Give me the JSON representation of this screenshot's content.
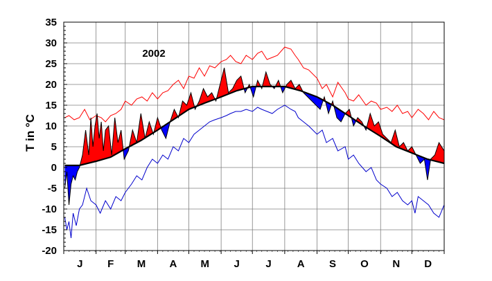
{
  "chart_data": {
    "type": "line",
    "title": "",
    "annotation": "2002",
    "ylabel": "T in °C",
    "xlabel": "",
    "ylim": [
      -20,
      35
    ],
    "xlim": [
      0,
      365
    ],
    "yticks": [
      35,
      30,
      25,
      20,
      15,
      10,
      5,
      0,
      -5,
      -10,
      -15,
      -20
    ],
    "month_labels": [
      "J",
      "F",
      "M",
      "A",
      "M",
      "J",
      "J",
      "A",
      "S",
      "O",
      "N",
      "D"
    ],
    "grid": true,
    "colors": {
      "above_normal_fill": "#ff0000",
      "below_normal_fill": "#0000ff",
      "max_line": "#ff0000",
      "min_line": "#0000cc",
      "normal_line": "#000000",
      "grid": "#7f7f7f"
    },
    "series": [
      {
        "key": "max",
        "x": [
          1,
          5,
          10,
          15,
          20,
          25,
          31,
          36,
          40,
          45,
          50,
          55,
          59,
          65,
          70,
          75,
          80,
          85,
          90,
          95,
          100,
          105,
          110,
          115,
          120,
          125,
          130,
          135,
          140,
          145,
          151,
          156,
          160,
          165,
          170,
          175,
          181,
          186,
          190,
          195,
          200,
          205,
          212,
          218,
          222,
          225,
          230,
          235,
          243,
          248,
          252,
          258,
          263,
          270,
          273,
          278,
          283,
          290,
          295,
          300,
          304,
          310,
          315,
          320,
          325,
          330,
          334,
          340,
          345,
          350,
          355,
          360,
          365
        ],
        "values": [
          12,
          12.5,
          11.5,
          12,
          14,
          11.5,
          12.5,
          12,
          11,
          12.5,
          13,
          14,
          16,
          15,
          16.5,
          17,
          16,
          18,
          16.5,
          18,
          18.5,
          20,
          21,
          19,
          22,
          21.5,
          24,
          22,
          24.5,
          24,
          25.5,
          26,
          27,
          25.5,
          25,
          27,
          26,
          27.5,
          28,
          26,
          26.5,
          27,
          29,
          28.5,
          27,
          26,
          24,
          23.5,
          21.5,
          19,
          20,
          17,
          20.5,
          18,
          16.5,
          16,
          17.5,
          15,
          16,
          15.5,
          14,
          14.5,
          13.5,
          15,
          13,
          13.5,
          12,
          14,
          13,
          11.5,
          13.5,
          12,
          11.5
        ]
      },
      {
        "key": "min",
        "x": [
          1,
          3,
          5,
          7,
          9,
          12,
          15,
          18,
          22,
          26,
          31,
          35,
          40,
          45,
          50,
          55,
          59,
          65,
          70,
          75,
          80,
          85,
          90,
          95,
          100,
          105,
          110,
          115,
          120,
          125,
          130,
          135,
          140,
          145,
          151,
          156,
          160,
          165,
          170,
          175,
          181,
          186,
          190,
          195,
          200,
          205,
          212,
          218,
          222,
          225,
          230,
          235,
          243,
          248,
          252,
          258,
          263,
          270,
          273,
          278,
          283,
          290,
          295,
          300,
          304,
          310,
          315,
          320,
          325,
          330,
          334,
          337,
          340,
          345,
          350,
          355,
          360,
          365
        ],
        "values": [
          -12,
          -15,
          -13,
          -17,
          -11,
          -14,
          -10,
          -9,
          -5,
          -8,
          -9,
          -11,
          -8,
          -10,
          -7,
          -8,
          -6,
          -4,
          -2,
          -3,
          0,
          2,
          1,
          3,
          2,
          5,
          4,
          7,
          6,
          8,
          9,
          10,
          11,
          11.5,
          12,
          12.5,
          13,
          13.5,
          13.5,
          14,
          13.5,
          14.5,
          14,
          13.5,
          13,
          14,
          15,
          14,
          13.5,
          12,
          11,
          10,
          8,
          9,
          6,
          7,
          4,
          5,
          2,
          3,
          1,
          -1,
          0,
          -3,
          -4,
          -5,
          -7,
          -6,
          -8,
          -9,
          -8,
          -11,
          -7,
          -8,
          -9,
          -11,
          -12,
          -9
        ]
      },
      {
        "key": "normal",
        "x": [
          1,
          15,
          31,
          45,
          59,
          74,
          90,
          105,
          120,
          135,
          151,
          166,
          181,
          196,
          212,
          227,
          243,
          258,
          273,
          288,
          304,
          319,
          334,
          349,
          365
        ],
        "values": [
          0.5,
          0.5,
          1.5,
          2.5,
          4.5,
          6.5,
          9,
          11.5,
          14,
          15.5,
          17,
          18.5,
          19.5,
          19.5,
          19.5,
          18.5,
          17,
          15,
          12.5,
          10,
          7.5,
          5,
          3.5,
          2,
          1
        ]
      },
      {
        "key": "mean",
        "x": [
          1,
          3,
          5,
          7,
          9,
          11,
          13,
          15,
          18,
          21,
          24,
          26,
          28,
          30,
          32,
          34,
          36,
          38,
          40,
          43,
          46,
          49,
          52,
          55,
          58,
          62,
          66,
          70,
          74,
          78,
          82,
          86,
          90,
          94,
          98,
          102,
          106,
          110,
          114,
          118,
          122,
          126,
          130,
          134,
          138,
          142,
          146,
          150,
          154,
          158,
          162,
          166,
          170,
          174,
          178,
          182,
          186,
          190,
          194,
          198,
          202,
          206,
          210,
          214,
          218,
          222,
          226,
          230,
          234,
          238,
          242,
          246,
          250,
          254,
          258,
          262,
          266,
          270,
          274,
          278,
          282,
          286,
          290,
          294,
          298,
          302,
          306,
          310,
          314,
          318,
          322,
          326,
          330,
          334,
          338,
          342,
          346,
          349,
          352,
          356,
          360,
          365
        ],
        "values": [
          -5,
          -1,
          -9,
          -4,
          -2,
          -3,
          -1,
          0,
          3,
          9,
          3,
          12,
          5,
          10,
          13,
          7,
          11,
          4,
          9,
          10,
          3,
          12,
          6,
          9,
          2,
          4,
          9,
          6,
          13,
          7,
          11,
          8,
          12,
          9,
          7,
          11,
          14,
          12,
          16,
          15,
          18,
          14,
          16,
          19,
          17,
          18,
          16,
          20,
          24,
          18,
          19,
          21,
          22,
          18,
          20,
          17,
          21,
          19,
          23,
          20,
          19,
          21,
          18,
          20,
          21,
          19,
          20,
          18,
          17,
          16,
          15,
          14,
          17,
          13,
          16,
          12,
          11,
          13,
          14,
          10,
          12,
          11,
          9,
          13,
          10,
          11,
          8,
          7,
          6,
          9,
          5,
          6,
          4,
          5,
          3,
          1,
          2,
          -3,
          2,
          3,
          6,
          4
        ]
      }
    ]
  }
}
